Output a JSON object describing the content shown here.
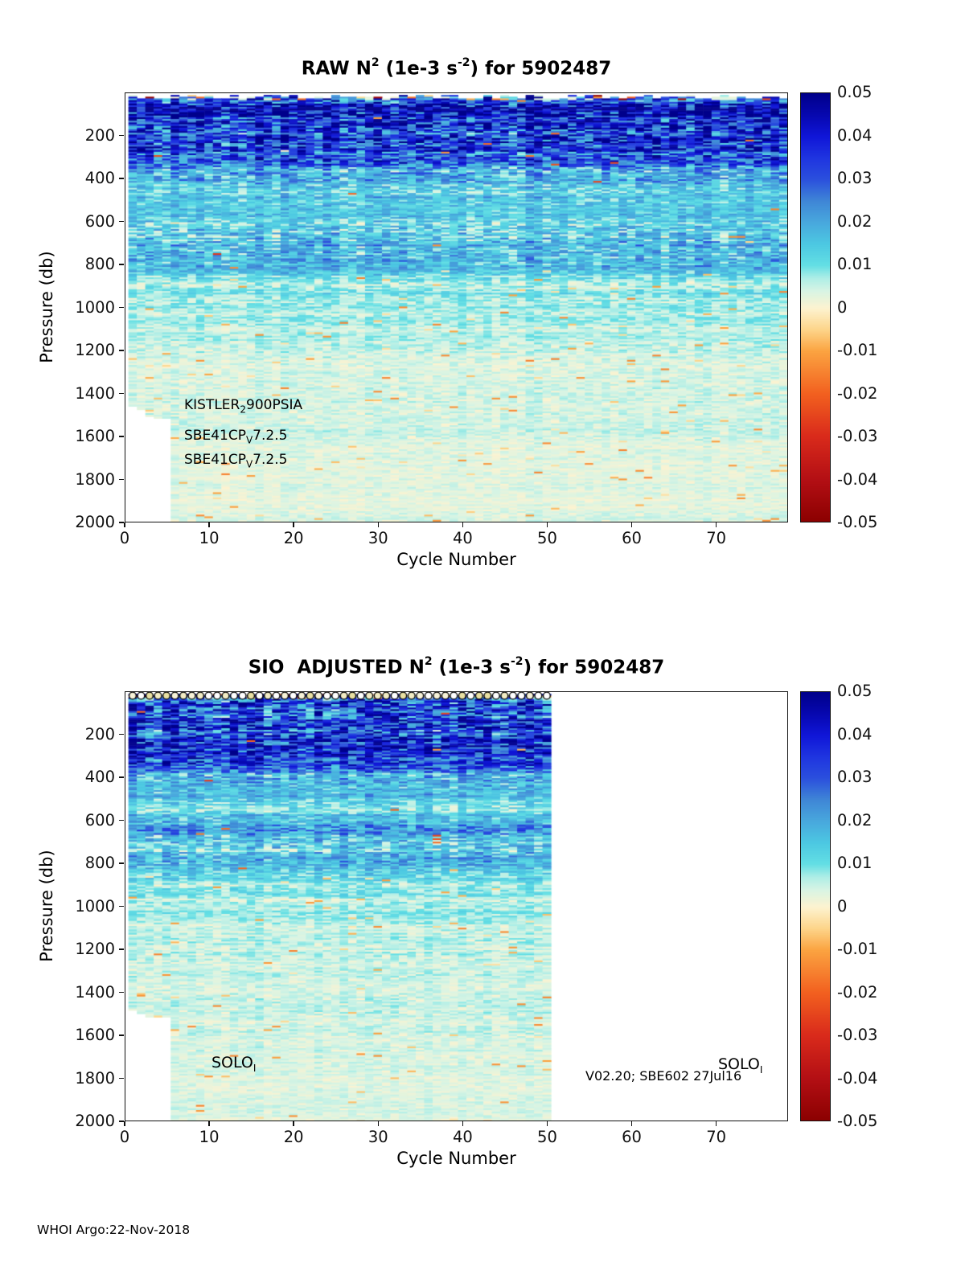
{
  "page": {
    "footer": "WHOI Argo:22-Nov-2018",
    "background": "#ffffff"
  },
  "colorbar": {
    "vmin": -0.05,
    "vmax": 0.05,
    "tick_labels": [
      "0.05",
      "0.04",
      "0.03",
      "0.02",
      "0.01",
      "0",
      "-0.01",
      "-0.02",
      "-0.03",
      "-0.04",
      "-0.05"
    ],
    "colormap_stops": [
      [
        0.0,
        "#8b0000"
      ],
      [
        0.1,
        "#b30f14"
      ],
      [
        0.2,
        "#d92a1b"
      ],
      [
        0.3,
        "#f2601f"
      ],
      [
        0.4,
        "#fba441"
      ],
      [
        0.45,
        "#fdd58a"
      ],
      [
        0.5,
        "#fdf3d0"
      ],
      [
        0.54,
        "#d8f4e4"
      ],
      [
        0.57,
        "#aeeee6"
      ],
      [
        0.6,
        "#63dfe4"
      ],
      [
        0.65,
        "#4cc8e2"
      ],
      [
        0.7,
        "#48a8dd"
      ],
      [
        0.75,
        "#3f86d6"
      ],
      [
        0.8,
        "#2b50dd"
      ],
      [
        0.85,
        "#1f35e0"
      ],
      [
        0.9,
        "#1016d8"
      ],
      [
        0.95,
        "#0708b0"
      ],
      [
        1.0,
        "#00008b"
      ]
    ]
  },
  "chart_data": [
    {
      "type": "heatmap",
      "id": "raw",
      "title": "RAW N^2 (1e-3 s^-2) for 5902487",
      "title_parts": {
        "pre": "RAW N",
        "sup1": "2",
        "mid": " (1e-3 s",
        "sup2": "-2",
        "post": ") for 5902487"
      },
      "xlabel": "Cycle Number",
      "ylabel": "Pressure (db)",
      "xlim": [
        0,
        78.5
      ],
      "ylim": [
        0,
        2000
      ],
      "ydir": "reverse",
      "xticks": [
        "0",
        "10",
        "20",
        "30",
        "40",
        "50",
        "60",
        "70"
      ],
      "yticks": [
        "200",
        "400",
        "600",
        "800",
        "1000",
        "1200",
        "1400",
        "1600",
        "1800",
        "2000"
      ],
      "annotations": [
        {
          "base": "KISTLER",
          "sub": "2",
          "rest": "900PSIA"
        },
        {
          "base": "SBE41CP",
          "sub": "V",
          "rest": "7.2.5"
        },
        {
          "base": "SBE41CP",
          "sub": "V",
          "rest": "7.2.5"
        }
      ],
      "heatmap": {
        "seed": 1337,
        "cycle_start": 0.35,
        "cycle_end": 78.35,
        "pressure_top": 6,
        "pressure_bottom": 2000,
        "row_db": 8,
        "shallow_columns_max_pressure": [
          1456,
          1472,
          1504,
          1512,
          1512
        ],
        "mean_profile_db_value": [
          [
            0,
            0.048
          ],
          [
            250,
            0.042
          ],
          [
            350,
            0.03
          ],
          [
            450,
            0.018
          ],
          [
            550,
            0.014
          ],
          [
            650,
            0.024
          ],
          [
            760,
            0.022
          ],
          [
            860,
            0.013
          ],
          [
            1000,
            0.009
          ],
          [
            1300,
            0.006
          ],
          [
            2000,
            0.0045
          ]
        ],
        "surface_markers": false
      }
    },
    {
      "type": "heatmap",
      "id": "sio_adjusted",
      "title": "SIO  ADJUSTED N^2 (1e-3 s^-2) for 5902487",
      "title_parts": {
        "pre": "SIO  ADJUSTED N",
        "sup1": "2",
        "mid": " (1e-3 s",
        "sup2": "-2",
        "post": ") for 5902487"
      },
      "xlabel": "Cycle Number",
      "ylabel": "Pressure (db)",
      "xlim": [
        0,
        78.5
      ],
      "ylim": [
        0,
        2000
      ],
      "ydir": "reverse",
      "xticks": [
        "0",
        "10",
        "20",
        "30",
        "40",
        "50",
        "60",
        "70"
      ],
      "yticks": [
        "200",
        "400",
        "600",
        "800",
        "1000",
        "1200",
        "1400",
        "1600",
        "1800",
        "2000"
      ],
      "annotations": [
        {
          "base": "SOLO",
          "sub": "I",
          "rest": ""
        },
        {
          "base": "V02.20; SBE602 27Jul16",
          "sub": "",
          "rest": ""
        },
        {
          "base": "SOLO",
          "sub": "I",
          "rest": ""
        }
      ],
      "heatmap": {
        "seed": 777,
        "cycle_start": 0.35,
        "cycle_end": 50.35,
        "pressure_top": 6,
        "pressure_bottom": 2000,
        "row_db": 8,
        "shallow_columns_max_pressure": [
          1480,
          1496,
          1512,
          1512,
          1512
        ],
        "mean_profile_db_value": [
          [
            0,
            0.048
          ],
          [
            250,
            0.042
          ],
          [
            350,
            0.03
          ],
          [
            450,
            0.018
          ],
          [
            550,
            0.014
          ],
          [
            650,
            0.024
          ],
          [
            760,
            0.022
          ],
          [
            860,
            0.013
          ],
          [
            1000,
            0.009
          ],
          [
            1300,
            0.006
          ],
          [
            2000,
            0.0045
          ]
        ],
        "surface_markers": true
      }
    }
  ]
}
